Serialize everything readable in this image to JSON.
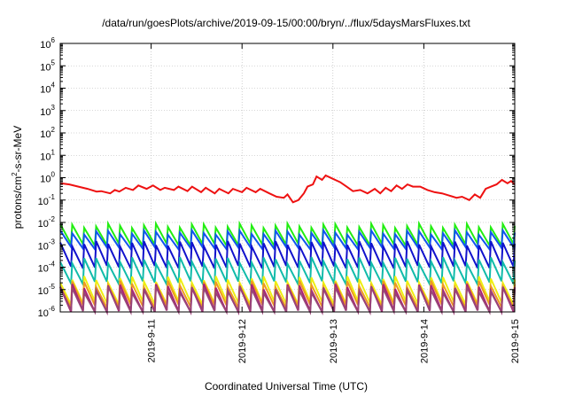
{
  "chart_data": {
    "type": "line",
    "title": "/data/run/goesPlots/archive/2019-09-15/00:00/bryn/../flux/5daysMarsFluxes.txt",
    "xlabel": "Coordinated Universal Time (UTC)",
    "ylabel": {
      "prefix": "protons/cm",
      "sup": "2",
      "suffix": "-s-sr-MeV"
    },
    "x_range_days": [
      0,
      5
    ],
    "x_ticks": [
      {
        "label": "2019-9-11",
        "day": 1
      },
      {
        "label": "2019-9-12",
        "day": 2
      },
      {
        "label": "2019-9-13",
        "day": 3
      },
      {
        "label": "2019-9-14",
        "day": 4
      },
      {
        "label": "2019-9-15",
        "day": 5
      }
    ],
    "y_scale": "log",
    "y_range_exp": [
      -6,
      6
    ],
    "y_ticks": [
      {
        "base": "10",
        "exp": "-6"
      },
      {
        "base": "10",
        "exp": "-5"
      },
      {
        "base": "10",
        "exp": "-4"
      },
      {
        "base": "10",
        "exp": "-3"
      },
      {
        "base": "10",
        "exp": "-2"
      },
      {
        "base": "10",
        "exp": "-1"
      },
      {
        "base": "10",
        "exp": "0"
      },
      {
        "base": "10",
        "exp": "1"
      },
      {
        "base": "10",
        "exp": "2"
      },
      {
        "base": "10",
        "exp": "3"
      },
      {
        "base": "10",
        "exp": "4"
      },
      {
        "base": "10",
        "exp": "5"
      },
      {
        "base": "10",
        "exp": "6"
      }
    ],
    "grid": true,
    "series": [
      {
        "color": "#ee1111",
        "log10_values": [
          [
            0.0,
            -0.25
          ],
          [
            0.1,
            -0.3
          ],
          [
            0.2,
            -0.4
          ],
          [
            0.3,
            -0.5
          ],
          [
            0.4,
            -0.62
          ],
          [
            0.45,
            -0.6
          ],
          [
            0.55,
            -0.7
          ],
          [
            0.6,
            -0.55
          ],
          [
            0.65,
            -0.62
          ],
          [
            0.72,
            -0.45
          ],
          [
            0.8,
            -0.55
          ],
          [
            0.86,
            -0.35
          ],
          [
            0.95,
            -0.5
          ],
          [
            1.02,
            -0.35
          ],
          [
            1.1,
            -0.55
          ],
          [
            1.15,
            -0.45
          ],
          [
            1.25,
            -0.55
          ],
          [
            1.3,
            -0.4
          ],
          [
            1.4,
            -0.6
          ],
          [
            1.45,
            -0.4
          ],
          [
            1.55,
            -0.65
          ],
          [
            1.6,
            -0.45
          ],
          [
            1.7,
            -0.7
          ],
          [
            1.75,
            -0.5
          ],
          [
            1.85,
            -0.7
          ],
          [
            1.9,
            -0.5
          ],
          [
            2.0,
            -0.65
          ],
          [
            2.05,
            -0.45
          ],
          [
            2.15,
            -0.65
          ],
          [
            2.2,
            -0.5
          ],
          [
            2.3,
            -0.7
          ],
          [
            2.38,
            -0.85
          ],
          [
            2.46,
            -0.9
          ],
          [
            2.5,
            -0.75
          ],
          [
            2.56,
            -1.1
          ],
          [
            2.62,
            -1.0
          ],
          [
            2.68,
            -0.7
          ],
          [
            2.72,
            -0.4
          ],
          [
            2.78,
            -0.3
          ],
          [
            2.82,
            0.05
          ],
          [
            2.88,
            -0.1
          ],
          [
            2.92,
            0.1
          ],
          [
            3.0,
            -0.05
          ],
          [
            3.08,
            -0.2
          ],
          [
            3.15,
            -0.4
          ],
          [
            3.22,
            -0.6
          ],
          [
            3.3,
            -0.55
          ],
          [
            3.38,
            -0.7
          ],
          [
            3.46,
            -0.5
          ],
          [
            3.52,
            -0.7
          ],
          [
            3.58,
            -0.45
          ],
          [
            3.64,
            -0.6
          ],
          [
            3.7,
            -0.35
          ],
          [
            3.76,
            -0.5
          ],
          [
            3.82,
            -0.3
          ],
          [
            3.88,
            -0.4
          ],
          [
            3.96,
            -0.4
          ],
          [
            4.04,
            -0.55
          ],
          [
            4.12,
            -0.65
          ],
          [
            4.2,
            -0.7
          ],
          [
            4.28,
            -0.8
          ],
          [
            4.36,
            -0.9
          ],
          [
            4.42,
            -0.85
          ],
          [
            4.5,
            -1.0
          ],
          [
            4.56,
            -0.75
          ],
          [
            4.62,
            -0.9
          ],
          [
            4.68,
            -0.5
          ],
          [
            4.74,
            -0.4
          ],
          [
            4.8,
            -0.3
          ],
          [
            4.86,
            -0.1
          ],
          [
            4.92,
            -0.25
          ],
          [
            4.96,
            -0.15
          ],
          [
            5.0,
            -0.3
          ]
        ]
      },
      {
        "color": "#22ee11",
        "saw": {
          "hi": -2.15,
          "lo": -3.0,
          "amp": 0.1,
          "n": 38
        }
      },
      {
        "color": "#1155ee",
        "saw": {
          "hi": -2.45,
          "lo": -3.15,
          "amp": 0.1,
          "n": 38
        }
      },
      {
        "color": "#1111cc",
        "saw": {
          "hi": -2.95,
          "lo": -4.0,
          "amp": 0.12,
          "n": 38
        }
      },
      {
        "color": "#11bbaa",
        "saw": {
          "hi": -3.7,
          "lo": -4.7,
          "amp": 0.15,
          "n": 38
        }
      },
      {
        "color": "#eeee11",
        "saw": {
          "hi": -4.55,
          "lo": -5.6,
          "amp": 0.15,
          "n": 38
        }
      },
      {
        "color": "#ee9922",
        "saw": {
          "hi": -4.75,
          "lo": -5.75,
          "amp": 0.15,
          "n": 38
        }
      },
      {
        "color": "#aa2277",
        "saw": {
          "hi": -4.9,
          "lo": -6.0,
          "amp": 0.15,
          "n": 38
        }
      },
      {
        "color": "#994477",
        "saw": {
          "hi": -5.0,
          "lo": -6.0,
          "amp": 0.15,
          "n": 38
        }
      }
    ]
  }
}
